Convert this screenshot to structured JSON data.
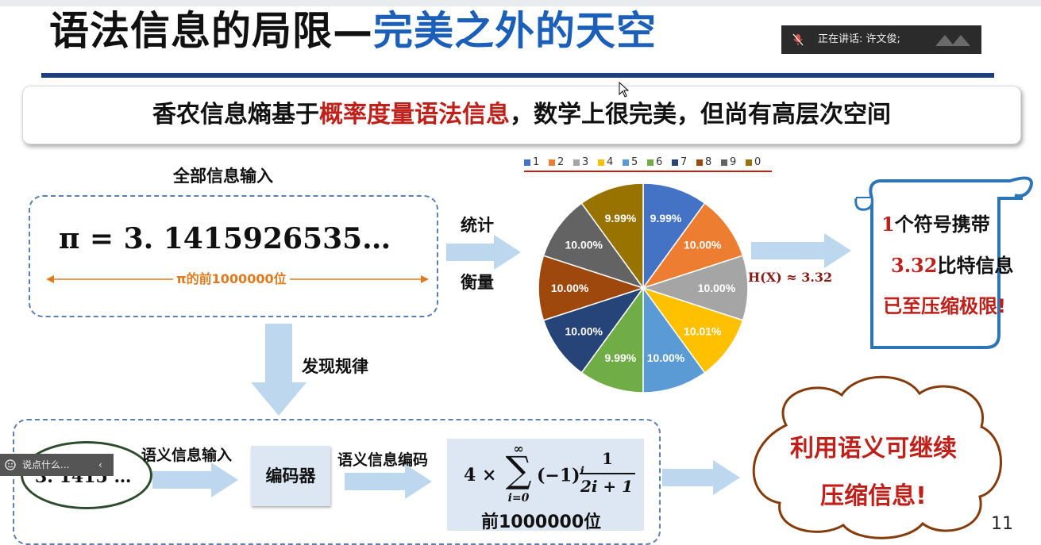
{
  "title": {
    "part1": "语法信息的局限—",
    "part2": "完美之外的天空"
  },
  "speaking": {
    "text": "正在讲话: 许文俊;"
  },
  "banner": {
    "pre": "香农信息熵基于",
    "highlight": "概率度量语法信息",
    "post": "，数学上很完美，但尚有高层次空间"
  },
  "top_left": {
    "heading": "全部信息输入",
    "formula": "π = 3. 1415926535…",
    "span_label": "π的前1000000位"
  },
  "arrow_labels": {
    "stat": "统计",
    "measure": "衡量",
    "discover": "发现规律"
  },
  "bottom_flow": {
    "input_number": "3. 1415 …",
    "semantic_input_label": "语义信息输入",
    "encoder": "编码器",
    "semantic_encode_label": "语义信息编码",
    "formula_prefix": "4 ×",
    "sum_top": "∞",
    "sum_symbol": "∑",
    "sum_bottom": "i=0",
    "term": "(−1)",
    "term_exp": "i",
    "frac_num": "1",
    "frac_den": "2i + 1",
    "caption": "前1000000位"
  },
  "entropy": {
    "text": "H(X) ≈ 3.32"
  },
  "scroll": {
    "line1_num": "1",
    "line1_text": "个符号携带",
    "line2_num": "3.32",
    "line2_text": "比特信息",
    "line3": "已至压缩极限!"
  },
  "cloud": {
    "line1": "利用语义可继续",
    "line2": "压缩信息!"
  },
  "chat": {
    "placeholder": "说点什么..."
  },
  "slide_number": "11",
  "chart_data": {
    "type": "pie",
    "legend_position": "top",
    "legend": [
      "1",
      "2",
      "3",
      "4",
      "5",
      "6",
      "7",
      "8",
      "9",
      "0"
    ],
    "slices": [
      {
        "label": "1",
        "value": 9.99,
        "text": "9.99%",
        "color": "#4472c4"
      },
      {
        "label": "2",
        "value": 10.0,
        "text": "10.00%",
        "color": "#ed7d31"
      },
      {
        "label": "3",
        "value": 10.0,
        "text": "10.00%",
        "color": "#a5a5a5"
      },
      {
        "label": "4",
        "value": 10.01,
        "text": "10.01%",
        "color": "#ffc000"
      },
      {
        "label": "5",
        "value": 10.0,
        "text": "10.00%",
        "color": "#5b9bd5"
      },
      {
        "label": "6",
        "value": 9.99,
        "text": "9.99%",
        "color": "#70ad47"
      },
      {
        "label": "7",
        "value": 10.0,
        "text": "10.00%",
        "color": "#264478"
      },
      {
        "label": "8",
        "value": 10.0,
        "text": "10.00%",
        "color": "#9e480e"
      },
      {
        "label": "9",
        "value": 10.0,
        "text": "10.00%",
        "color": "#636363"
      },
      {
        "label": "0",
        "value": 9.99,
        "text": "9.99%",
        "color": "#997300"
      }
    ]
  }
}
